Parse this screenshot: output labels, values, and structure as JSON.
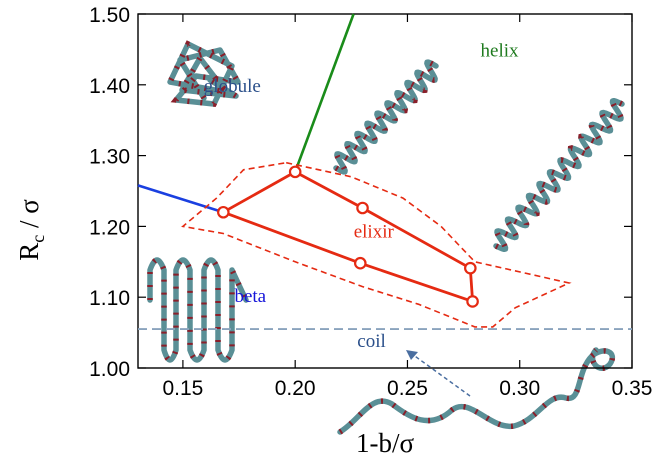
{
  "chart_data": {
    "type": "line",
    "xlabel": "1-b/σ",
    "ylabel_main": "R",
    "ylabel_sub": "c",
    "ylabel_rest": " / σ",
    "xlim": [
      0.13,
      0.35
    ],
    "ylim": [
      1.0,
      1.5
    ],
    "x_ticks": [
      {
        "v": 0.15,
        "label": "0.15"
      },
      {
        "v": 0.2,
        "label": "0.20"
      },
      {
        "v": 0.25,
        "label": "0.25"
      },
      {
        "v": 0.3,
        "label": "0.30"
      },
      {
        "v": 0.35,
        "label": "0.35"
      }
    ],
    "y_ticks": [
      {
        "v": 1.0,
        "label": "1.00"
      },
      {
        "v": 1.1,
        "label": "1.10"
      },
      {
        "v": 1.2,
        "label": "1.20"
      },
      {
        "v": 1.3,
        "label": "1.30"
      },
      {
        "v": 1.4,
        "label": "1.40"
      },
      {
        "v": 1.5,
        "label": "1.50"
      }
    ],
    "regions": [
      {
        "key": "globule",
        "label": "globule",
        "color": "#2a4f8a",
        "x": 0.172,
        "y": 1.39
      },
      {
        "key": "helix",
        "label": "helix",
        "color": "#1e7a1e",
        "x": 0.291,
        "y": 1.44
      },
      {
        "key": "elixir",
        "label": "elixir",
        "color": "#e52a12",
        "x": 0.235,
        "y": 1.184
      },
      {
        "key": "beta",
        "label": "beta",
        "color": "#1515d9",
        "x": 0.18,
        "y": 1.093
      },
      {
        "key": "coil",
        "label": "coil",
        "color": "#2a4f8a",
        "x": 0.234,
        "y": 1.03
      }
    ],
    "elixir_polygon": [
      {
        "x": 0.168,
        "y": 1.22
      },
      {
        "x": 0.2,
        "y": 1.277
      },
      {
        "x": 0.23,
        "y": 1.226
      },
      {
        "x": 0.278,
        "y": 1.141
      },
      {
        "x": 0.279,
        "y": 1.094
      },
      {
        "x": 0.229,
        "y": 1.148
      },
      {
        "x": 0.168,
        "y": 1.22
      }
    ],
    "elixir_envelope": [
      {
        "x": 0.196,
        "y": 1.29
      },
      {
        "x": 0.225,
        "y": 1.27
      },
      {
        "x": 0.248,
        "y": 1.24
      },
      {
        "x": 0.265,
        "y": 1.2
      },
      {
        "x": 0.28,
        "y": 1.15
      },
      {
        "x": 0.322,
        "y": 1.12
      },
      {
        "x": 0.298,
        "y": 1.085
      },
      {
        "x": 0.288,
        "y": 1.058
      },
      {
        "x": 0.28,
        "y": 1.058
      },
      {
        "x": 0.255,
        "y": 1.09
      },
      {
        "x": 0.23,
        "y": 1.115
      },
      {
        "x": 0.2,
        "y": 1.15
      },
      {
        "x": 0.168,
        "y": 1.19
      },
      {
        "x": 0.15,
        "y": 1.2
      },
      {
        "x": 0.165,
        "y": 1.24
      },
      {
        "x": 0.177,
        "y": 1.28
      },
      {
        "x": 0.196,
        "y": 1.29
      }
    ],
    "helix_boundary": [
      {
        "x": 0.2,
        "y": 1.277
      },
      {
        "x": 0.226,
        "y": 1.5
      }
    ],
    "beta_boundary": [
      {
        "x": 0.13,
        "y": 1.258
      },
      {
        "x": 0.168,
        "y": 1.22
      }
    ],
    "coil_line_y": 1.055,
    "colors": {
      "elixir": "#e52a12",
      "helix_boundary": "#1a8c1a",
      "beta_boundary": "#1a3fe0",
      "coil_line": "#8aa3bd",
      "arrow": "#4a6ea0",
      "chain": "#5a8f96",
      "chain_dot": "#8a1f2a"
    }
  }
}
